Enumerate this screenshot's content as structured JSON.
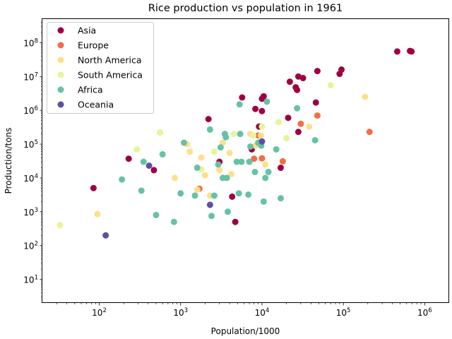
{
  "chart_data": {
    "type": "scatter",
    "title": "Rice production vs population in 1961",
    "xlabel": "Population/1000",
    "ylabel": "Production/tons",
    "x_scale": "log",
    "y_scale": "log",
    "xlim": [
      20,
      2000000
    ],
    "ylim": [
      2,
      500000000
    ],
    "x_ticks": [
      {
        "value": 100,
        "base": "10",
        "exp": "2"
      },
      {
        "value": 1000,
        "base": "10",
        "exp": "3"
      },
      {
        "value": 10000,
        "base": "10",
        "exp": "4"
      },
      {
        "value": 100000,
        "base": "10",
        "exp": "5"
      },
      {
        "value": 1000000,
        "base": "10",
        "exp": "6"
      }
    ],
    "y_ticks": [
      {
        "value": 10,
        "base": "10",
        "exp": "1"
      },
      {
        "value": 100,
        "base": "10",
        "exp": "2"
      },
      {
        "value": 1000,
        "base": "10",
        "exp": "3"
      },
      {
        "value": 10000,
        "base": "10",
        "exp": "4"
      },
      {
        "value": 100000,
        "base": "10",
        "exp": "5"
      },
      {
        "value": 1000000,
        "base": "10",
        "exp": "6"
      },
      {
        "value": 10000000,
        "base": "10",
        "exp": "7"
      },
      {
        "value": 100000000,
        "base": "10",
        "exp": "8"
      }
    ],
    "grid": false,
    "legend_position": "top-left",
    "series": [
      {
        "name": "Asia",
        "color": "#9e0142",
        "points": [
          [
            85,
            5000
          ],
          [
            230,
            37000
          ],
          [
            470,
            17000
          ],
          [
            2200,
            550000
          ],
          [
            3000,
            30000
          ],
          [
            4300,
            2800
          ],
          [
            4700,
            500
          ],
          [
            5700,
            2400000
          ],
          [
            8300,
            1100000
          ],
          [
            9200,
            330000
          ],
          [
            10000,
            2200000
          ],
          [
            10500,
            2600000
          ],
          [
            10000,
            950000
          ],
          [
            17000,
            20000
          ],
          [
            21000,
            600000
          ],
          [
            22000,
            7000000
          ],
          [
            26000,
            4800000
          ],
          [
            27000,
            4000000
          ],
          [
            28000,
            10000000
          ],
          [
            32000,
            9000000
          ],
          [
            28000,
            230000
          ],
          [
            46000,
            1700000
          ],
          [
            48000,
            14500000
          ],
          [
            90000,
            12000000
          ],
          [
            95000,
            16000000
          ],
          [
            460000,
            55000000
          ],
          [
            660000,
            57000000
          ],
          [
            690000,
            55000000
          ],
          [
            7500,
            70000
          ]
        ]
      },
      {
        "name": "Europe",
        "color": "#f46d43",
        "points": [
          [
            1700,
            4800
          ],
          [
            8000,
            37000
          ],
          [
            9000,
            180000
          ],
          [
            10000,
            38000
          ],
          [
            18000,
            31000
          ],
          [
            30000,
            400000
          ],
          [
            48000,
            700000
          ],
          [
            210000,
            230000
          ]
        ]
      },
      {
        "name": "North America",
        "color": "#fee08b",
        "points": [
          [
            95,
            850
          ],
          [
            850,
            10000
          ],
          [
            1200,
            100000
          ],
          [
            1300,
            60000
          ],
          [
            1600,
            4500
          ],
          [
            1800,
            40000
          ],
          [
            2000,
            12000
          ],
          [
            2300,
            3000
          ],
          [
            3000,
            17000
          ],
          [
            3300,
            110000
          ],
          [
            4000,
            55000
          ],
          [
            4200,
            13000
          ],
          [
            7200,
            200000
          ],
          [
            8300,
            90000
          ],
          [
            9700,
            180000
          ],
          [
            11000,
            25000
          ],
          [
            38000,
            330000
          ],
          [
            185000,
            2500000
          ]
        ]
      },
      {
        "name": "South America",
        "color": "#e6f598",
        "points": [
          [
            33,
            400
          ],
          [
            290,
            70000
          ],
          [
            560,
            220000
          ],
          [
            1800,
            18000
          ],
          [
            2600,
            60000
          ],
          [
            4500,
            200000
          ],
          [
            7800,
            180000
          ],
          [
            10000,
            330000
          ],
          [
            16000,
            450000
          ],
          [
            20000,
            150000
          ],
          [
            70000,
            5500000
          ]
        ]
      },
      {
        "name": "Africa",
        "color": "#66c2a5",
        "points": [
          [
            190,
            9000
          ],
          [
            330,
            4200
          ],
          [
            350,
            30000
          ],
          [
            500,
            800
          ],
          [
            600,
            50000
          ],
          [
            830,
            500
          ],
          [
            1000,
            3500
          ],
          [
            1100,
            110000
          ],
          [
            1500,
            3000
          ],
          [
            1600,
            20000
          ],
          [
            2300,
            270000
          ],
          [
            2400,
            750
          ],
          [
            2600,
            3000
          ],
          [
            2900,
            25000
          ],
          [
            3100,
            80000
          ],
          [
            3300,
            10000
          ],
          [
            3500,
            200000
          ],
          [
            3600,
            160000
          ],
          [
            3700,
            10000
          ],
          [
            3800,
            1000
          ],
          [
            4900,
            30000
          ],
          [
            5200,
            3500
          ],
          [
            5300,
            1500000
          ],
          [
            5400,
            200000
          ],
          [
            5600,
            30000
          ],
          [
            6800,
            3200
          ],
          [
            7000,
            30000
          ],
          [
            7200,
            85000
          ],
          [
            8200,
            15000
          ],
          [
            9000,
            110000
          ],
          [
            9800,
            90000
          ],
          [
            10500,
            2000
          ],
          [
            11000,
            10000
          ],
          [
            11500,
            1800000
          ],
          [
            12000,
            15000
          ],
          [
            15000,
            70000
          ],
          [
            17000,
            2500
          ],
          [
            27000,
            1150000
          ],
          [
            45000,
            130000
          ]
        ]
      },
      {
        "name": "Oceania",
        "color": "#5e4fa2",
        "points": [
          [
            120,
            200
          ],
          [
            410,
            23000
          ],
          [
            2300,
            1600
          ],
          [
            10000,
            120000
          ]
        ]
      }
    ]
  }
}
